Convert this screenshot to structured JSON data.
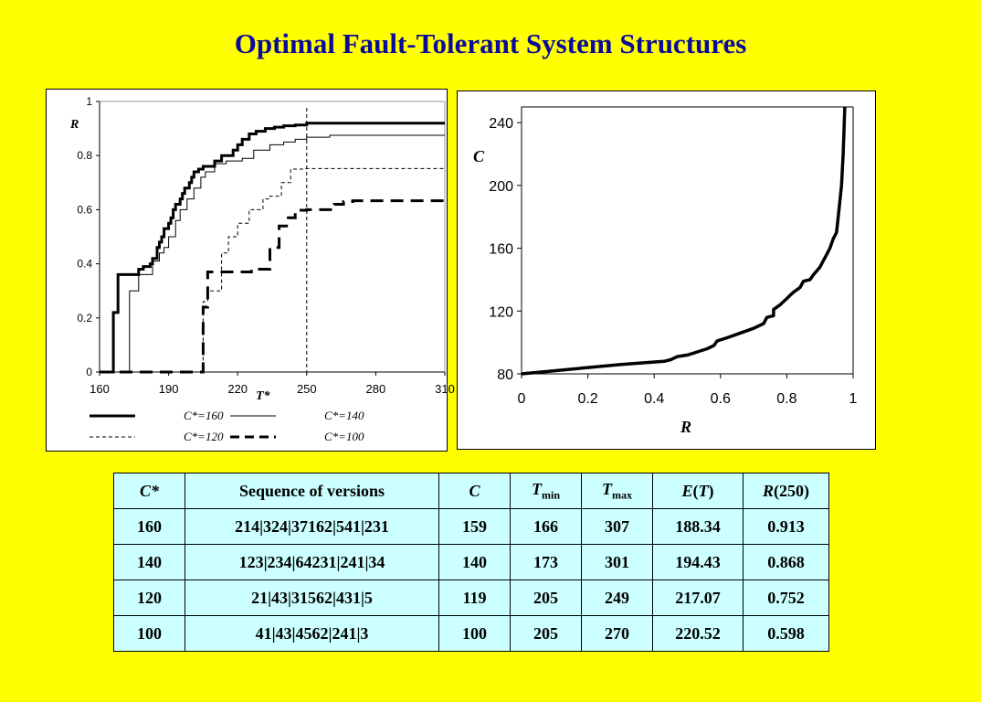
{
  "title": "Optimal Fault-Tolerant System Structures",
  "chart_data": [
    {
      "type": "line",
      "ylabel": "R",
      "xlabel": "T*",
      "xlim": [
        160,
        310
      ],
      "ylim": [
        0,
        1
      ],
      "x_ticks": [
        "160",
        "190",
        "220",
        "250",
        "280",
        "310"
      ],
      "y_ticks": [
        "0",
        "0.2",
        "0.4",
        "0.6",
        "0.8",
        "1"
      ],
      "grid": false,
      "legend_position": "bottom",
      "reference_line_x": 250,
      "series": [
        {
          "name": "C*=160",
          "style": "solid-bold",
          "x": [
            160,
            166,
            166,
            168,
            168,
            170,
            170,
            177,
            177,
            179,
            179,
            182,
            182,
            183,
            183,
            185,
            185,
            186,
            186,
            187,
            187,
            188,
            188,
            190,
            190,
            191,
            191,
            192,
            192,
            193,
            193,
            195,
            195,
            196,
            196,
            197,
            197,
            199,
            199,
            200,
            200,
            201,
            201,
            203,
            203,
            205,
            205,
            207,
            207,
            210,
            210,
            213,
            213,
            218,
            218,
            220,
            220,
            222,
            222,
            225,
            225,
            228,
            228,
            232,
            232,
            236,
            236,
            240,
            240,
            245,
            245,
            250,
            250,
            255,
            255,
            310
          ],
          "y": [
            0,
            0,
            0.22,
            0.22,
            0.36,
            0.36,
            0.36,
            0.36,
            0.38,
            0.38,
            0.39,
            0.39,
            0.4,
            0.4,
            0.42,
            0.42,
            0.46,
            0.46,
            0.48,
            0.48,
            0.5,
            0.5,
            0.53,
            0.53,
            0.55,
            0.55,
            0.57,
            0.57,
            0.6,
            0.6,
            0.62,
            0.62,
            0.64,
            0.64,
            0.66,
            0.66,
            0.68,
            0.68,
            0.7,
            0.7,
            0.72,
            0.72,
            0.74,
            0.74,
            0.75,
            0.75,
            0.76,
            0.76,
            0.76,
            0.76,
            0.78,
            0.78,
            0.8,
            0.8,
            0.82,
            0.82,
            0.84,
            0.84,
            0.86,
            0.86,
            0.88,
            0.88,
            0.89,
            0.89,
            0.9,
            0.9,
            0.905,
            0.905,
            0.91,
            0.91,
            0.913,
            0.913,
            0.92,
            0.92,
            0.92,
            0.92
          ]
        },
        {
          "name": "C*=140",
          "style": "solid-thin",
          "x": [
            160,
            173,
            173,
            177,
            177,
            183,
            183,
            186,
            186,
            188,
            188,
            190,
            190,
            193,
            193,
            195,
            195,
            198,
            198,
            201,
            201,
            204,
            204,
            206,
            206,
            210,
            210,
            215,
            215,
            222,
            222,
            227,
            227,
            234,
            234,
            240,
            240,
            245,
            245,
            250,
            250,
            260,
            260,
            310
          ],
          "y": [
            0,
            0,
            0.3,
            0.3,
            0.36,
            0.36,
            0.41,
            0.41,
            0.44,
            0.44,
            0.46,
            0.46,
            0.5,
            0.5,
            0.56,
            0.56,
            0.6,
            0.6,
            0.64,
            0.64,
            0.68,
            0.68,
            0.72,
            0.72,
            0.74,
            0.74,
            0.77,
            0.77,
            0.78,
            0.78,
            0.79,
            0.79,
            0.82,
            0.82,
            0.84,
            0.84,
            0.85,
            0.85,
            0.86,
            0.86,
            0.868,
            0.868,
            0.875,
            0.875
          ]
        },
        {
          "name": "C*=120",
          "style": "dashed-thin",
          "x": [
            160,
            205,
            205,
            207,
            207,
            213,
            213,
            216,
            216,
            220,
            220,
            225,
            225,
            231,
            231,
            234,
            234,
            239,
            239,
            243,
            243,
            249,
            249,
            310
          ],
          "y": [
            0,
            0,
            0.26,
            0.26,
            0.3,
            0.3,
            0.44,
            0.44,
            0.5,
            0.5,
            0.55,
            0.55,
            0.6,
            0.6,
            0.64,
            0.64,
            0.65,
            0.65,
            0.7,
            0.7,
            0.75,
            0.75,
            0.752,
            0.752
          ]
        },
        {
          "name": "C*=100",
          "style": "dashed-bold",
          "x": [
            160,
            205,
            205,
            207,
            207,
            216,
            216,
            226,
            226,
            234,
            234,
            238,
            238,
            242,
            242,
            245,
            245,
            250,
            250,
            262,
            262,
            266,
            266,
            270,
            270,
            310
          ],
          "y": [
            0,
            0,
            0.24,
            0.24,
            0.37,
            0.37,
            0.37,
            0.37,
            0.38,
            0.38,
            0.46,
            0.46,
            0.54,
            0.54,
            0.57,
            0.57,
            0.598,
            0.598,
            0.6,
            0.6,
            0.62,
            0.62,
            0.63,
            0.63,
            0.633,
            0.633
          ]
        }
      ]
    },
    {
      "type": "line",
      "xlabel": "R",
      "ylabel": "C",
      "xlim": [
        0,
        1
      ],
      "ylim": [
        80,
        250
      ],
      "x_ticks": [
        "0",
        "0.2",
        "0.4",
        "0.6",
        "0.8",
        "1"
      ],
      "y_ticks": [
        "80",
        "120",
        "160",
        "200",
        "240"
      ],
      "grid": false,
      "series": [
        {
          "style": "solid-bold",
          "x": [
            0,
            0.1,
            0.2,
            0.3,
            0.43,
            0.45,
            0.47,
            0.5,
            0.53,
            0.56,
            0.58,
            0.59,
            0.62,
            0.66,
            0.7,
            0.73,
            0.74,
            0.76,
            0.76,
            0.78,
            0.79,
            0.8,
            0.81,
            0.82,
            0.84,
            0.85,
            0.87,
            0.88,
            0.9,
            0.91,
            0.92,
            0.93,
            0.94,
            0.95,
            0.955,
            0.96,
            0.965,
            0.97,
            0.975
          ],
          "y": [
            80,
            82,
            84,
            86,
            88,
            89,
            91,
            92,
            94,
            96,
            98,
            101,
            103,
            106,
            109,
            112,
            116,
            117,
            121,
            124,
            126,
            128,
            130,
            132,
            135,
            139,
            140,
            143,
            148,
            152,
            156,
            160,
            166,
            170,
            180,
            190,
            200,
            220,
            250
          ]
        }
      ]
    }
  ],
  "table": {
    "headers": [
      "C*",
      "Sequence of versions",
      "C",
      "T",
      "min",
      "T",
      "max",
      "E",
      "T",
      "R",
      "(250)"
    ],
    "rows": [
      [
        "160",
        "214|324|37162|541|231",
        "159",
        "166",
        "307",
        "188.34",
        "0.913"
      ],
      [
        "140",
        "123|234|64231|241|34",
        "140",
        "173",
        "301",
        "194.43",
        "0.868"
      ],
      [
        "120",
        "21|43|31562|431|5",
        "119",
        "205",
        "249",
        "217.07",
        "0.752"
      ],
      [
        "100",
        "41|43|4562|241|3",
        "100",
        "205",
        "270",
        "220.52",
        "0.598"
      ]
    ]
  }
}
